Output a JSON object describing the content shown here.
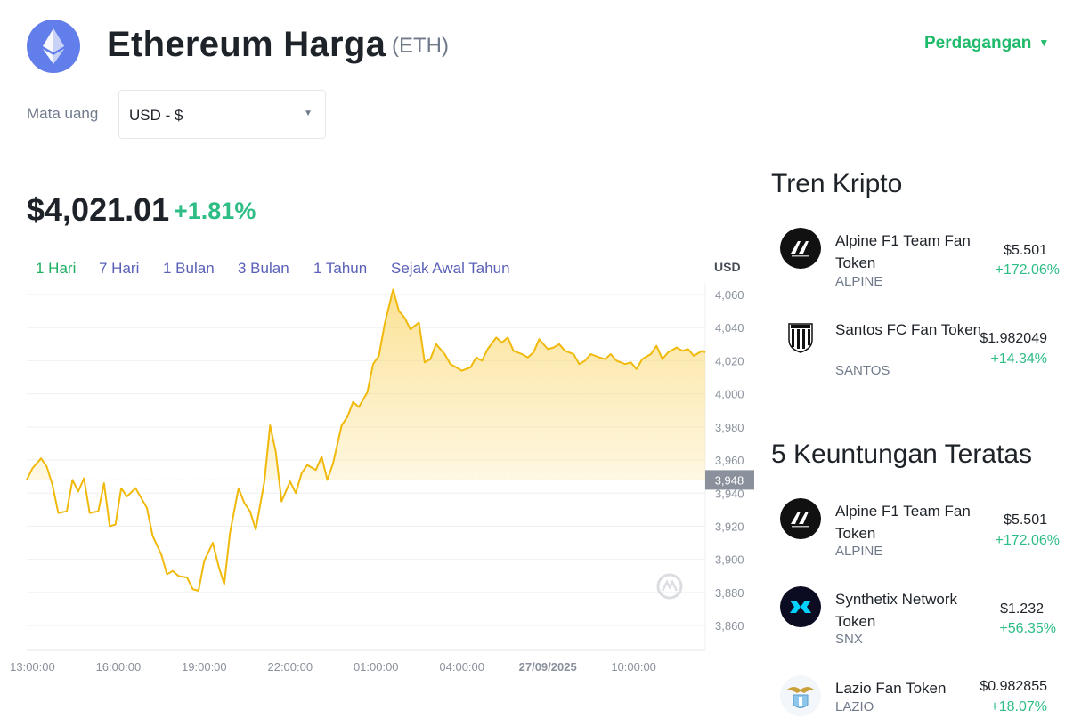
{
  "header": {
    "title": "Ethereum Harga",
    "ticker": "(ETH)",
    "trade_label": "Perdagangan",
    "logo_icon": "ethereum-icon"
  },
  "currency": {
    "label": "Mata uang",
    "selected": "USD - $"
  },
  "price": {
    "value": "$4,021.01",
    "change": "+1.81%"
  },
  "ranges": [
    "1 Hari",
    "7 Hari",
    "1 Bulan",
    "3 Bulan",
    "1 Tahun",
    "Sejak Awal Tahun"
  ],
  "active_range": "1 Hari",
  "colors": {
    "accent_green": "#2ebd85",
    "range_link": "#5a60b7",
    "line": "#f0b90b",
    "eth_logo": "#627eea"
  },
  "chart_data": {
    "type": "area",
    "unit": "USD",
    "x_ticks": [
      "13:00:00",
      "16:00:00",
      "19:00:00",
      "22:00:00",
      "01:00:00",
      "04:00:00",
      "27/09/2025",
      "10:00:00"
    ],
    "y_ticks": [
      4060,
      4040,
      4020,
      4000,
      3980,
      3960,
      3940,
      3920,
      3900,
      3880,
      3860
    ],
    "ylim": [
      3845,
      4067
    ],
    "xlim_hours": [
      12.8,
      36.5
    ],
    "current_value": 3948,
    "current_value_label": "3,948",
    "grid": true,
    "points": [
      [
        12.8,
        3948
      ],
      [
        13.0,
        3955
      ],
      [
        13.3,
        3961
      ],
      [
        13.5,
        3956
      ],
      [
        13.7,
        3945
      ],
      [
        13.9,
        3928
      ],
      [
        14.2,
        3929
      ],
      [
        14.4,
        3948
      ],
      [
        14.6,
        3941
      ],
      [
        14.8,
        3949
      ],
      [
        15.0,
        3928
      ],
      [
        15.3,
        3929
      ],
      [
        15.5,
        3946
      ],
      [
        15.7,
        3920
      ],
      [
        15.9,
        3921
      ],
      [
        16.1,
        3943
      ],
      [
        16.3,
        3938
      ],
      [
        16.6,
        3943
      ],
      [
        16.8,
        3937
      ],
      [
        17.0,
        3931
      ],
      [
        17.2,
        3914
      ],
      [
        17.5,
        3903
      ],
      [
        17.7,
        3891
      ],
      [
        17.9,
        3893
      ],
      [
        18.1,
        3890
      ],
      [
        18.4,
        3889
      ],
      [
        18.6,
        3882
      ],
      [
        18.8,
        3881
      ],
      [
        19.0,
        3899
      ],
      [
        19.3,
        3910
      ],
      [
        19.5,
        3896
      ],
      [
        19.7,
        3885
      ],
      [
        19.9,
        3916
      ],
      [
        20.2,
        3943
      ],
      [
        20.4,
        3934
      ],
      [
        20.6,
        3929
      ],
      [
        20.8,
        3918
      ],
      [
        21.1,
        3947
      ],
      [
        21.3,
        3981
      ],
      [
        21.5,
        3965
      ],
      [
        21.7,
        3935
      ],
      [
        22.0,
        3947
      ],
      [
        22.2,
        3940
      ],
      [
        22.4,
        3952
      ],
      [
        22.6,
        3957
      ],
      [
        22.9,
        3954
      ],
      [
        23.1,
        3962
      ],
      [
        23.3,
        3948
      ],
      [
        23.5,
        3958
      ],
      [
        23.8,
        3981
      ],
      [
        24.0,
        3986
      ],
      [
        24.2,
        3995
      ],
      [
        24.4,
        3992
      ],
      [
        24.7,
        4001
      ],
      [
        24.9,
        4018
      ],
      [
        25.1,
        4023
      ],
      [
        25.3,
        4042
      ],
      [
        25.6,
        4063
      ],
      [
        25.8,
        4050
      ],
      [
        26.0,
        4046
      ],
      [
        26.2,
        4039
      ],
      [
        26.5,
        4043
      ],
      [
        26.7,
        4019
      ],
      [
        26.9,
        4021
      ],
      [
        27.1,
        4030
      ],
      [
        27.4,
        4024
      ],
      [
        27.6,
        4018
      ],
      [
        27.8,
        4016
      ],
      [
        28.0,
        4014
      ],
      [
        28.3,
        4016
      ],
      [
        28.5,
        4022
      ],
      [
        28.7,
        4020
      ],
      [
        28.9,
        4027
      ],
      [
        29.2,
        4034
      ],
      [
        29.4,
        4031
      ],
      [
        29.6,
        4034
      ],
      [
        29.8,
        4026
      ],
      [
        30.1,
        4024
      ],
      [
        30.3,
        4022
      ],
      [
        30.5,
        4025
      ],
      [
        30.7,
        4033
      ],
      [
        31.0,
        4027
      ],
      [
        31.2,
        4028
      ],
      [
        31.4,
        4030
      ],
      [
        31.6,
        4026
      ],
      [
        31.9,
        4024
      ],
      [
        32.1,
        4018
      ],
      [
        32.3,
        4020
      ],
      [
        32.5,
        4024
      ],
      [
        32.8,
        4022
      ],
      [
        33.0,
        4021
      ],
      [
        33.2,
        4024
      ],
      [
        33.4,
        4020
      ],
      [
        33.7,
        4018
      ],
      [
        33.9,
        4019
      ],
      [
        34.1,
        4015
      ],
      [
        34.3,
        4021
      ],
      [
        34.6,
        4024
      ],
      [
        34.8,
        4029
      ],
      [
        35.0,
        4021
      ],
      [
        35.2,
        4025
      ],
      [
        35.5,
        4028
      ],
      [
        35.7,
        4026
      ],
      [
        35.9,
        4027
      ],
      [
        36.1,
        4023
      ],
      [
        36.4,
        4026
      ],
      [
        36.5,
        4025
      ]
    ]
  },
  "trending": {
    "title": "Tren Kripto",
    "items": [
      {
        "name": "Alpine F1 Team Fan Token",
        "symbol": "ALPINE",
        "price": "$5.501",
        "change": "+172.06%",
        "icon": "alpine-logo-icon"
      },
      {
        "name": "Santos FC Fan Token",
        "symbol": "SANTOS",
        "price": "$1.982049",
        "change": "+14.34%",
        "icon": "santos-crest-icon"
      }
    ]
  },
  "gainers": {
    "title": "5 Keuntungan Teratas",
    "items": [
      {
        "name": "Alpine F1 Team Fan Token",
        "symbol": "ALPINE",
        "price": "$5.501",
        "change": "+172.06%",
        "icon": "alpine-logo-icon"
      },
      {
        "name": "Synthetix Network Token",
        "symbol": "SNX",
        "price": "$1.232",
        "change": "+56.35%",
        "icon": "snx-logo-icon"
      },
      {
        "name": "Lazio Fan Token",
        "symbol": "LAZIO",
        "price": "$0.982855",
        "change": "+18.07%",
        "icon": "lazio-eagle-icon"
      }
    ]
  }
}
